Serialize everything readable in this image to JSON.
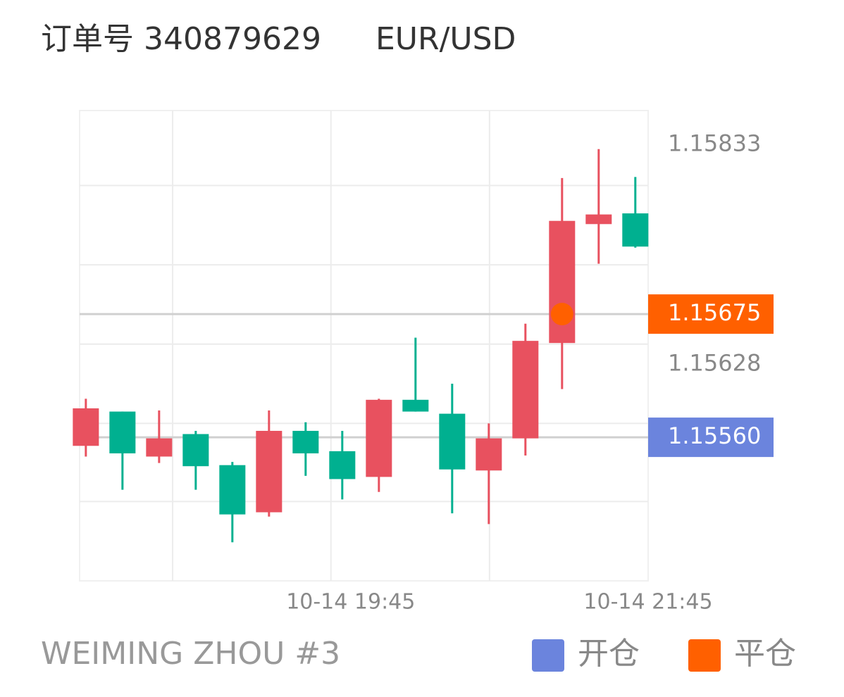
{
  "header": {
    "order": "订单号 340879629",
    "symbol": "EUR/USD"
  },
  "footer": {
    "account": "WEIMING ZHOU #3"
  },
  "chart_data": {
    "type": "candlestick",
    "categories": [
      null,
      null,
      null,
      null,
      null,
      null,
      null,
      null,
      null,
      null,
      null,
      null,
      null,
      null,
      null,
      null
    ],
    "open": [
      1.15552,
      1.15584,
      1.15542,
      1.15563,
      1.15534,
      1.1549,
      1.15566,
      1.15547,
      1.15523,
      1.15595,
      1.15582,
      1.15529,
      1.15559,
      1.15648,
      1.15759,
      1.15769
    ],
    "high": [
      1.15596,
      1.15584,
      1.15585,
      1.15566,
      1.15537,
      1.15585,
      1.15574,
      1.15566,
      1.15596,
      1.15653,
      1.1561,
      1.15573,
      1.15666,
      1.15802,
      1.15829,
      1.15803
    ],
    "low": [
      1.15542,
      1.15511,
      1.15536,
      1.15511,
      1.15462,
      1.15486,
      1.15524,
      1.15502,
      1.15509,
      1.15584,
      1.15489,
      1.15479,
      1.15543,
      1.15605,
      1.15722,
      1.15737
    ],
    "close": [
      1.15587,
      1.15545,
      1.15559,
      1.15533,
      1.15488,
      1.15566,
      1.15545,
      1.15521,
      1.15595,
      1.15584,
      1.1553,
      1.15559,
      1.1565,
      1.15762,
      1.15768,
      1.15738
    ],
    "up_color": "#e8515f",
    "down_color": "#00b090",
    "ylim": [
      1.15426,
      1.15865
    ],
    "yticks": [
      1.15833,
      1.15628
    ],
    "ygrid": [
      1.15795,
      1.15721,
      1.15647,
      1.15573,
      1.155
    ],
    "xlim": [
      -0.17,
      15.35
    ],
    "xticks": [
      {
        "value": 7.23,
        "label": "10-14 19:45"
      },
      {
        "value": 15.35,
        "label": "10-14 21:45"
      }
    ],
    "xgrid": [
      2.37,
      6.69,
      11.02
    ],
    "markers": [
      {
        "name": "开仓",
        "value": 1.1556,
        "label": "1.15560",
        "color": "#6b84dd"
      },
      {
        "name": "平仓",
        "value": 1.15675,
        "label": "1.15675",
        "color": "#ff6000",
        "index": 13
      }
    ]
  }
}
